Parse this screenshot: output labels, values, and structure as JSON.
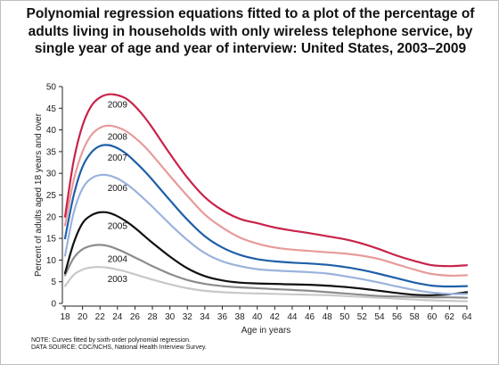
{
  "chart_data": {
    "type": "line",
    "title": "Polynomial regression equations fitted to a plot of the percentage of adults living in households with only wireless telephone service, by single year of age and year of interview: United States, 2003–2009",
    "xlabel": "Age in years",
    "ylabel": "Percent of adults aged 18 years and over",
    "xlim": [
      18,
      64
    ],
    "ylim": [
      0,
      50
    ],
    "x_ticks": [
      18,
      20,
      22,
      24,
      26,
      28,
      30,
      32,
      34,
      36,
      38,
      40,
      42,
      44,
      46,
      48,
      50,
      52,
      54,
      56,
      58,
      60,
      62,
      64
    ],
    "y_ticks": [
      0,
      5,
      10,
      15,
      20,
      25,
      30,
      35,
      40,
      45,
      50
    ],
    "grid": false,
    "legend": "labels placed directly on curves",
    "x": [
      18,
      19,
      20,
      21,
      22,
      23,
      24,
      25,
      26,
      27,
      28,
      30,
      32,
      34,
      36,
      38,
      40,
      42,
      44,
      46,
      48,
      50,
      52,
      54,
      56,
      58,
      60,
      62,
      64
    ],
    "series": [
      {
        "name": "2009",
        "color": "#c8234a",
        "values": [
          20,
          33,
          41,
          45.5,
          47.5,
          48.2,
          48,
          47.2,
          45.5,
          43.2,
          40.5,
          34.5,
          29,
          24.5,
          21.5,
          19.5,
          18.5,
          17.5,
          16.8,
          16.2,
          15.5,
          14.8,
          13.8,
          12.5,
          11,
          9.8,
          8.8,
          8.6,
          8.8
        ]
      },
      {
        "name": "2008",
        "color": "#e89a9a",
        "values": [
          18,
          28.5,
          35,
          38.8,
          40.5,
          41,
          40.6,
          39.7,
          38.2,
          36.4,
          34.2,
          29.4,
          24.8,
          20.5,
          17.5,
          15.2,
          13.8,
          12.9,
          12.4,
          12.1,
          11.8,
          11.5,
          11,
          10.2,
          9,
          7.8,
          6.8,
          6.4,
          6.5
        ]
      },
      {
        "name": "2007",
        "color": "#1f5fa8",
        "values": [
          15,
          25,
          31.5,
          34.8,
          36.3,
          36.5,
          35.8,
          34.5,
          32.7,
          30.7,
          28.5,
          23.8,
          19.3,
          15.5,
          12.9,
          11.2,
          10.2,
          9.7,
          9.4,
          9.2,
          8.9,
          8.4,
          7.7,
          6.8,
          5.8,
          4.8,
          4.1,
          3.9,
          4.0
        ]
      },
      {
        "name": "2006",
        "color": "#9ab3dc",
        "values": [
          11,
          21,
          26.5,
          28.8,
          29.6,
          29.5,
          28.8,
          27.6,
          26,
          24.2,
          22.3,
          18.3,
          14.6,
          11.6,
          9.7,
          8.6,
          7.9,
          7.6,
          7.4,
          7.2,
          6.9,
          6.3,
          5.6,
          4.8,
          3.9,
          3.1,
          2.5,
          2.2,
          2.2
        ]
      },
      {
        "name": "2005",
        "color": "#111111",
        "values": [
          7,
          14,
          18.5,
          20.3,
          21,
          20.9,
          20.1,
          18.9,
          17.4,
          15.7,
          14,
          10.8,
          8.1,
          6.3,
          5.3,
          4.8,
          4.6,
          4.5,
          4.4,
          4.3,
          4.1,
          3.8,
          3.4,
          2.9,
          2.4,
          2.0,
          1.9,
          2.1,
          2.6
        ]
      },
      {
        "name": "2004",
        "color": "#8c8c8c",
        "values": [
          6.5,
          10.5,
          12.5,
          13.3,
          13.5,
          13.2,
          12.5,
          11.6,
          10.6,
          9.6,
          8.6,
          6.8,
          5.4,
          4.5,
          4.0,
          3.7,
          3.5,
          3.3,
          3.1,
          2.9,
          2.6,
          2.3,
          2.0,
          1.7,
          1.6,
          1.5,
          1.4,
          1.4,
          1.3
        ]
      },
      {
        "name": "2003",
        "color": "#c8c8c8",
        "values": [
          4,
          6.6,
          7.8,
          8.3,
          8.4,
          8.2,
          7.8,
          7.3,
          6.7,
          6.1,
          5.5,
          4.4,
          3.5,
          2.9,
          2.6,
          2.4,
          2.3,
          2.2,
          2.1,
          2.0,
          1.9,
          1.7,
          1.5,
          1.3,
          1.1,
          0.9,
          0.7,
          0.6,
          0.5
        ]
      }
    ],
    "series_label_age": [
      24,
      24,
      24,
      24,
      24,
      24,
      24
    ]
  },
  "footnotes": {
    "note": "NOTE: Curves fitted by sixth-order polynomial regression.",
    "source": "DATA SOURCE: CDC/NCHS, National Health Interview Survey."
  }
}
